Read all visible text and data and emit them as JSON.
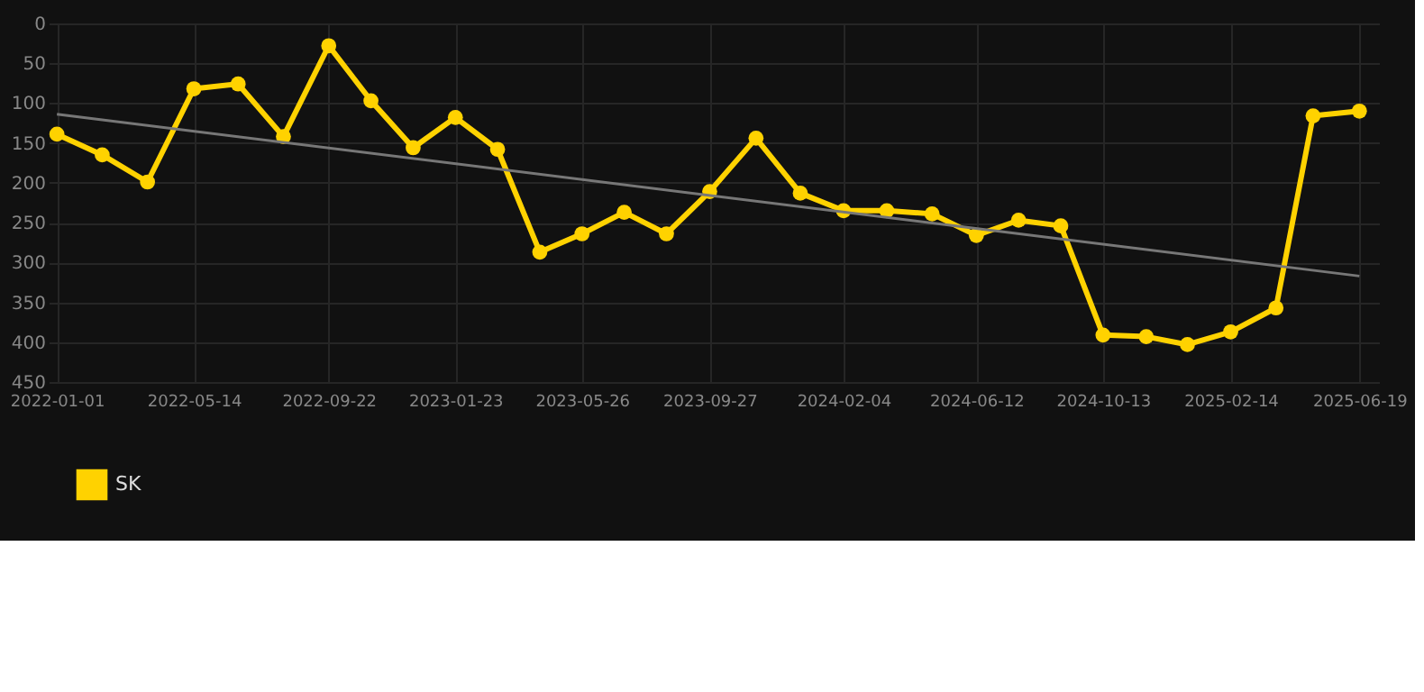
{
  "chart_data": {
    "type": "line",
    "x": [
      "2022-01-01",
      "2022-02-14",
      "2022-03-30",
      "2022-05-14",
      "2022-06-26",
      "2022-08-09",
      "2022-09-22",
      "2022-11-02",
      "2022-12-13",
      "2023-01-23",
      "2023-03-05",
      "2023-04-15",
      "2023-05-26",
      "2023-07-06",
      "2023-08-16",
      "2023-09-27",
      "2023-11-11",
      "2023-12-24",
      "2024-02-04",
      "2024-03-17",
      "2024-04-30",
      "2024-06-12",
      "2024-07-23",
      "2024-09-02",
      "2024-10-13",
      "2024-11-24",
      "2025-01-03",
      "2025-02-14",
      "2025-03-30",
      "2025-05-05",
      "2025-06-19"
    ],
    "series": [
      {
        "name": "SK",
        "color": "#ffd200",
        "marker": "circle",
        "values": [
          139,
          165,
          199,
          82,
          76,
          142,
          28,
          97,
          156,
          118,
          158,
          287,
          264,
          237,
          264,
          211,
          144,
          213,
          235,
          235,
          239,
          266,
          247,
          254,
          391,
          393,
          403,
          387,
          357,
          116,
          110
        ]
      },
      {
        "type": "line",
        "color": "#777777",
        "marker": "none",
        "x": [
          "2022-01-01",
          "2025-06-19"
        ],
        "values": [
          114,
          317
        ]
      }
    ],
    "xlim": [
      "2021-12-24",
      "2025-07-08"
    ],
    "xticks": [
      "2022-01-01",
      "2022-05-14",
      "2022-09-22",
      "2023-01-23",
      "2023-05-26",
      "2023-09-27",
      "2024-02-04",
      "2024-06-12",
      "2024-10-13",
      "2025-02-14",
      "2025-06-19"
    ],
    "ylim": [
      450,
      0
    ],
    "yticks": [
      0,
      50,
      100,
      150,
      200,
      250,
      300,
      350,
      400,
      450
    ],
    "grid": true,
    "legend": "bottom"
  }
}
